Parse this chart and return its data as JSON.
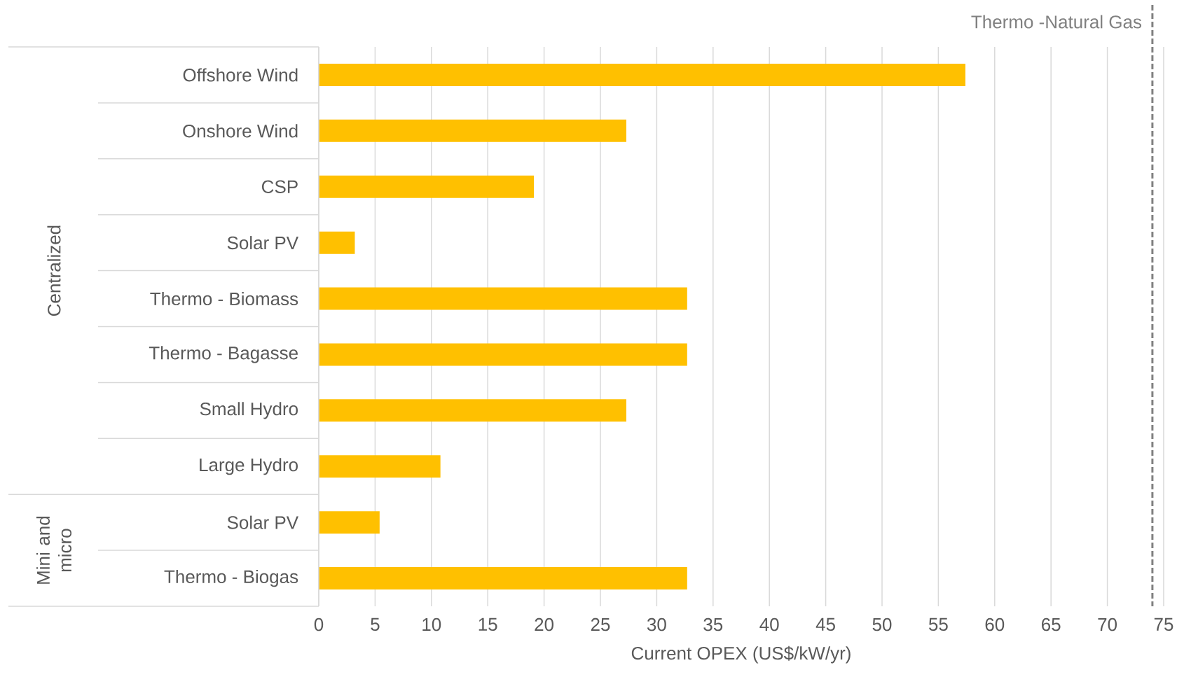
{
  "chart_data": {
    "type": "bar",
    "orientation": "horizontal",
    "categories": [
      "Offshore Wind",
      "Onshore Wind",
      "CSP",
      "Solar PV",
      "Thermo  - Biomass",
      "Thermo - Bagasse",
      "Small Hydro",
      "Large Hydro",
      "Solar PV",
      "Thermo - Biogas"
    ],
    "values": [
      57.4,
      27.3,
      19.1,
      3.2,
      32.7,
      32.7,
      27.3,
      10.8,
      5.4,
      32.7
    ],
    "color": "#ffc000",
    "xlabel": "Current OPEX (US$/kW/yr)",
    "xlim": [
      0,
      75
    ],
    "xticks": [
      0,
      5,
      10,
      15,
      20,
      25,
      30,
      35,
      40,
      45,
      50,
      55,
      60,
      65,
      70,
      75
    ],
    "grid": "x",
    "ref_lines": [
      {
        "axis": "x",
        "value": 74,
        "label": "Thermo -Natural Gas",
        "color": "#808080",
        "line_style": "dashed"
      }
    ],
    "annotations": [
      "Centralized",
      "Mini and micro"
    ]
  }
}
